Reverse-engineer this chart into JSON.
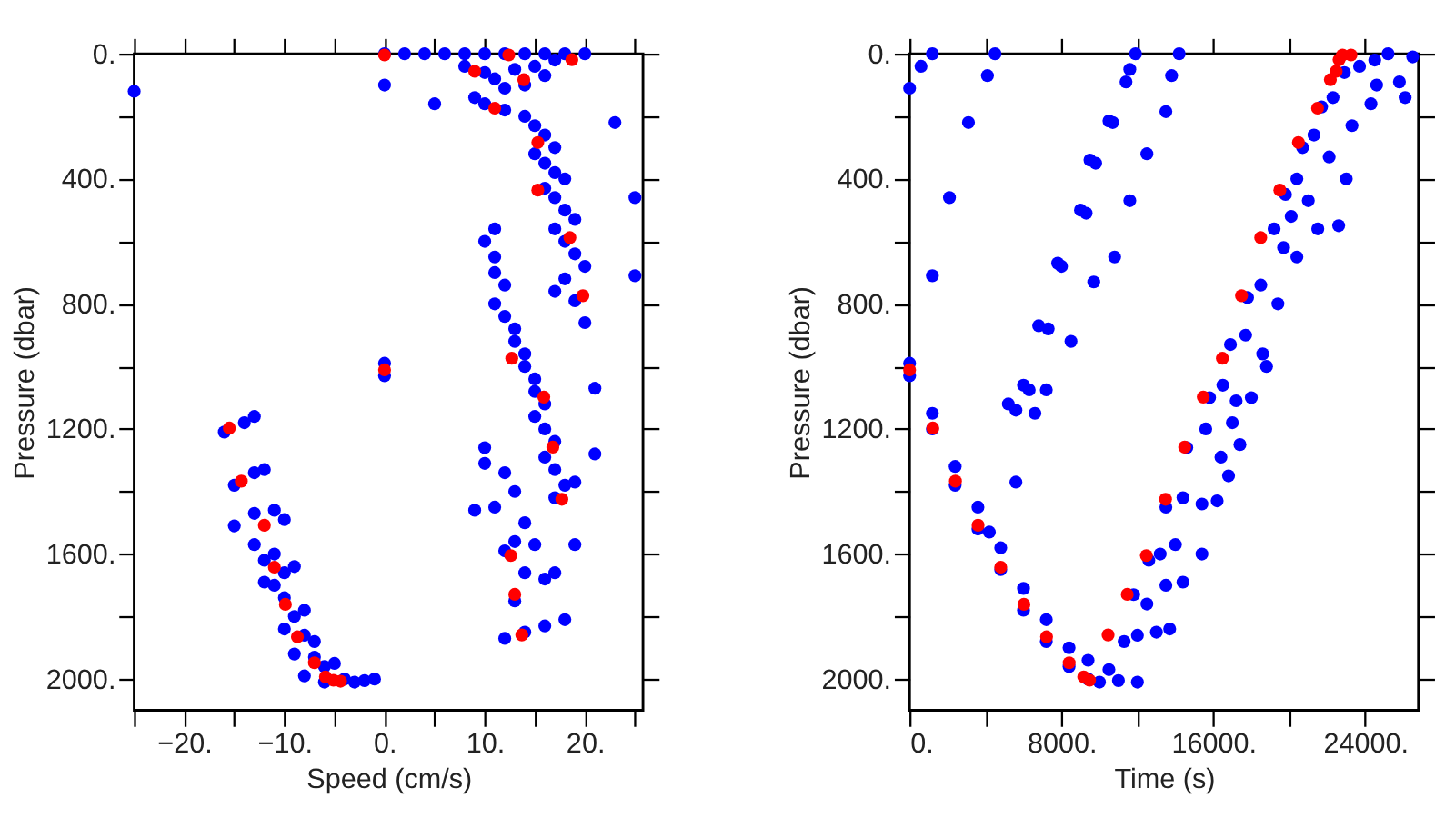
{
  "chart_data": [
    {
      "type": "scatter",
      "xlabel": "Speed (cm/s)",
      "ylabel": "Pressure (dbar)",
      "xlim": [
        -25,
        25.8
      ],
      "ylim": [
        2100,
        0
      ],
      "xticks": [
        {
          "value": -25,
          "label": null
        },
        {
          "value": -20,
          "label": "−20."
        },
        {
          "value": -15,
          "label": null
        },
        {
          "value": -10,
          "label": "−10."
        },
        {
          "value": -5,
          "label": null
        },
        {
          "value": 0,
          "label": "0."
        },
        {
          "value": 5,
          "label": null
        },
        {
          "value": 10,
          "label": "10."
        },
        {
          "value": 15,
          "label": null
        },
        {
          "value": 20,
          "label": "20."
        },
        {
          "value": 25,
          "label": null
        }
      ],
      "yticks": [
        {
          "value": 0,
          "label": "0."
        },
        {
          "value": 200,
          "label": null
        },
        {
          "value": 400,
          "label": "400."
        },
        {
          "value": 600,
          "label": null
        },
        {
          "value": 800,
          "label": "800."
        },
        {
          "value": 1000,
          "label": null
        },
        {
          "value": 1200,
          "label": "1200."
        },
        {
          "value": 1400,
          "label": null
        },
        {
          "value": 1600,
          "label": "1600."
        },
        {
          "value": 1800,
          "label": null
        },
        {
          "value": 2000,
          "label": "2000."
        }
      ],
      "grid": false,
      "marker": "circle",
      "series": [
        {
          "color": "#0000ff",
          "x": [
            0,
            2,
            4,
            6,
            8,
            10,
            12,
            14,
            16,
            18,
            20,
            8,
            10,
            11,
            13,
            15,
            16,
            17,
            14,
            12,
            9,
            10,
            12,
            14,
            15,
            16,
            17,
            15,
            16,
            17,
            18,
            16,
            17,
            18,
            19,
            17,
            18,
            19,
            20,
            18,
            17,
            19,
            20,
            -25,
            0,
            5,
            23,
            25,
            25,
            11,
            10,
            11,
            11,
            12,
            11,
            12,
            13,
            13,
            14,
            14,
            15,
            15,
            16,
            15,
            16,
            17,
            16,
            17,
            18,
            17,
            19,
            21,
            21,
            10,
            10,
            12,
            13,
            11,
            9,
            14,
            13,
            12,
            15,
            14,
            16,
            17,
            13,
            12,
            14,
            16,
            18,
            19,
            0,
            0,
            -16,
            -14,
            -13,
            -13,
            -15,
            -12,
            -13,
            -15,
            -11,
            -10,
            -13,
            -12,
            -11,
            -12,
            -11,
            -10,
            -9,
            -10,
            -9,
            -8,
            -10,
            -8,
            -7,
            -9,
            -7,
            -6,
            -5,
            -8,
            -6,
            -4,
            -3,
            -2,
            -1
          ],
          "values": [
            0,
            0,
            0,
            0,
            0,
            0,
            0,
            0,
            0,
            0,
            0,
            40,
            60,
            80,
            50,
            40,
            70,
            20,
            100,
            110,
            140,
            160,
            180,
            200,
            230,
            260,
            300,
            320,
            350,
            380,
            400,
            430,
            460,
            500,
            530,
            560,
            600,
            640,
            680,
            720,
            760,
            790,
            860,
            120,
            100,
            160,
            220,
            460,
            710,
            560,
            600,
            650,
            700,
            740,
            800,
            840,
            880,
            920,
            960,
            1000,
            1040,
            1080,
            1120,
            1160,
            1200,
            1240,
            1290,
            1330,
            1380,
            1420,
            1370,
            1070,
            1280,
            1260,
            1310,
            1340,
            1400,
            1450,
            1460,
            1500,
            1560,
            1590,
            1570,
            1660,
            1680,
            1660,
            1750,
            1870,
            1850,
            1830,
            1810,
            1570,
            990,
            1030,
            1210,
            1180,
            1160,
            1340,
            1380,
            1330,
            1470,
            1510,
            1460,
            1490,
            1570,
            1620,
            1600,
            1690,
            1700,
            1660,
            1640,
            1740,
            1800,
            1780,
            1840,
            1860,
            1880,
            1920,
            1930,
            1960,
            1950,
            1990,
            2010,
            2000,
            2010,
            2005,
            2000
          ]
        },
        {
          "color": "#ff0000",
          "x": [
            0,
            9,
            12.4,
            13.9,
            18.7,
            11,
            15.3,
            15.3,
            18.5,
            19.8,
            12.7,
            15.9,
            16.8,
            17.7,
            12.6,
            13,
            13.7,
            0,
            -15.5,
            -14.3,
            -12,
            -11,
            -9.9,
            -8.7,
            -7,
            -5.9,
            -5.1,
            -4.4
          ],
          "values": [
            4,
            56,
            4,
            83,
            19,
            174,
            284,
            436,
            588,
            774,
            974,
            1098,
            1258,
            1425,
            1605,
            1729,
            1859,
            1011,
            1197,
            1367,
            1508,
            1642,
            1761,
            1865,
            1948,
            1993,
            2004,
            2007
          ]
        }
      ]
    },
    {
      "type": "scatter",
      "xlabel": "Time (s)",
      "ylabel": "Pressure (dbar)",
      "xlim": [
        0,
        26800
      ],
      "ylim": [
        2100,
        0
      ],
      "xticks": [
        {
          "value": 0,
          "label": "0."
        },
        {
          "value": 4000,
          "label": null
        },
        {
          "value": 8000,
          "label": "8000."
        },
        {
          "value": 12000,
          "label": null
        },
        {
          "value": 16000,
          "label": "16000."
        },
        {
          "value": 20000,
          "label": null
        },
        {
          "value": 24000,
          "label": "24000."
        }
      ],
      "yticks": [
        {
          "value": 0,
          "label": "0."
        },
        {
          "value": 200,
          "label": null
        },
        {
          "value": 400,
          "label": "400."
        },
        {
          "value": 600,
          "label": null
        },
        {
          "value": 800,
          "label": "800."
        },
        {
          "value": 1000,
          "label": null
        },
        {
          "value": 1200,
          "label": "1200."
        },
        {
          "value": 1400,
          "label": null
        },
        {
          "value": 1600,
          "label": "1600."
        },
        {
          "value": 1800,
          "label": null
        },
        {
          "value": 2000,
          "label": "2000."
        }
      ],
      "grid": false,
      "marker": "circle",
      "series": [
        {
          "color": "#0000ff",
          "x": [
            0,
            0,
            1200,
            1200,
            2400,
            2400,
            3600,
            3600,
            4200,
            4800,
            4800,
            6000,
            6000,
            7200,
            7200,
            8400,
            8400,
            9400,
            9400,
            10000,
            11000,
            12000,
            10500,
            0,
            600,
            1200,
            1200,
            2100,
            3100,
            4100,
            4500,
            5200,
            5600,
            5600,
            6000,
            6300,
            6600,
            6800,
            7200,
            7300,
            7800,
            8000,
            8500,
            9000,
            9300,
            9500,
            9800,
            9700,
            10500,
            10700,
            10800,
            11400,
            11600,
            11900,
            11600,
            12500,
            13500,
            13800,
            14200,
            11300,
            12000,
            13000,
            13700,
            11800,
            12500,
            13500,
            14400,
            12600,
            13200,
            14000,
            15400,
            13500,
            14400,
            15400,
            16200,
            14600,
            15600,
            16400,
            17400,
            15800,
            16500,
            17200,
            18000,
            16900,
            17700,
            18600,
            17800,
            18500,
            19400,
            19200,
            19700,
            20400,
            19800,
            20400,
            21000,
            21500,
            20700,
            21300,
            22100,
            23000,
            21700,
            22300,
            23300,
            24300,
            22900,
            23700,
            24500,
            25200,
            26500,
            25800,
            26100,
            24600,
            18800,
            16800,
            17000,
            20100,
            22600
          ],
          "values": [
            990,
            1030,
            1150,
            1200,
            1320,
            1380,
            1450,
            1520,
            1530,
            1580,
            1650,
            1710,
            1780,
            1810,
            1880,
            1900,
            1960,
            1940,
            2000,
            2010,
            2005,
            2010,
            1970,
            110,
            40,
            0,
            710,
            460,
            220,
            70,
            0,
            1120,
            1140,
            1370,
            1060,
            1075,
            1150,
            870,
            1075,
            880,
            670,
            680,
            920,
            500,
            510,
            340,
            350,
            730,
            215,
            220,
            650,
            90,
            50,
            0,
            470,
            320,
            185,
            70,
            0,
            1880,
            1860,
            1850,
            1840,
            1730,
            1760,
            1700,
            1690,
            1620,
            1600,
            1570,
            1600,
            1450,
            1420,
            1440,
            1430,
            1260,
            1200,
            1290,
            1250,
            1100,
            1060,
            1110,
            1100,
            930,
            900,
            960,
            780,
            740,
            800,
            560,
            620,
            650,
            450,
            400,
            470,
            560,
            300,
            260,
            330,
            400,
            170,
            140,
            230,
            160,
            60,
            40,
            20,
            0,
            10,
            90,
            140,
            100,
            1000,
            1350,
            1180,
            520,
            550
          ]
        },
        {
          "color": "#ff0000",
          "x": [
            0,
            1223,
            2415,
            3607,
            4799,
            6022,
            7214,
            8406,
            9171,
            9476,
            10455,
            11464,
            12472,
            13481,
            14490,
            15468,
            16477,
            17485,
            18494,
            19502,
            20480,
            21489,
            22162,
            22467,
            22620,
            22800,
            23250
          ],
          "values": [
            1011,
            1197,
            1367,
            1508,
            1642,
            1761,
            1865,
            1948,
            1993,
            2004,
            1859,
            1729,
            1605,
            1425,
            1258,
            1098,
            974,
            774,
            588,
            436,
            284,
            174,
            83,
            56,
            19,
            4,
            4
          ]
        }
      ]
    }
  ]
}
